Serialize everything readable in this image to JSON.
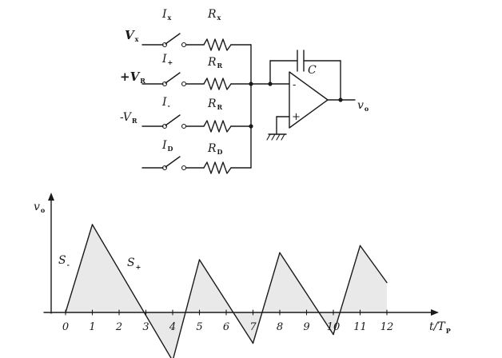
{
  "circuit": {
    "inputs": [
      {
        "v_main": "V",
        "v_sub": "x",
        "i_main": "I",
        "i_sub": "x",
        "r_main": "R",
        "r_sub": "x"
      },
      {
        "v_main": "+V",
        "v_sub": "R",
        "i_main": "I",
        "i_sub": "+",
        "r_main": "R",
        "r_sub": "R"
      },
      {
        "v_main": "-V",
        "v_sub": "R",
        "i_main": "I",
        "i_sub": "-",
        "r_main": "R",
        "r_sub": "R"
      },
      {
        "v_main": "",
        "v_sub": "",
        "i_main": "I",
        "i_sub": "D",
        "r_main": "R",
        "r_sub": "D"
      }
    ],
    "capacitor_label": "C",
    "output_main": "v",
    "output_sub": "o"
  },
  "waveform": {
    "y_axis_main": "v",
    "y_axis_sub": "o",
    "x_axis_main": "t/T",
    "x_axis_sub": "P",
    "slope_labels": [
      {
        "main": "S",
        "sub": "-"
      },
      {
        "main": "S",
        "sub": "+"
      }
    ],
    "tick_labels": [
      "0",
      "1",
      "2",
      "3",
      "4",
      "5",
      "6",
      "7",
      "8",
      "9",
      "10",
      "11",
      "12"
    ]
  },
  "chart_data": {
    "type": "line",
    "xlabel": "t/T_P",
    "ylabel": "v_o",
    "xlim": [
      0,
      12
    ],
    "series": [
      {
        "points": [
          [
            0,
            0
          ],
          [
            1,
            1
          ],
          [
            4,
            -0.55
          ],
          [
            5,
            0.6
          ],
          [
            7,
            -0.35
          ],
          [
            8,
            0.68
          ],
          [
            10,
            -0.25
          ],
          [
            11,
            0.76
          ],
          [
            12,
            0.34
          ]
        ]
      }
    ]
  }
}
